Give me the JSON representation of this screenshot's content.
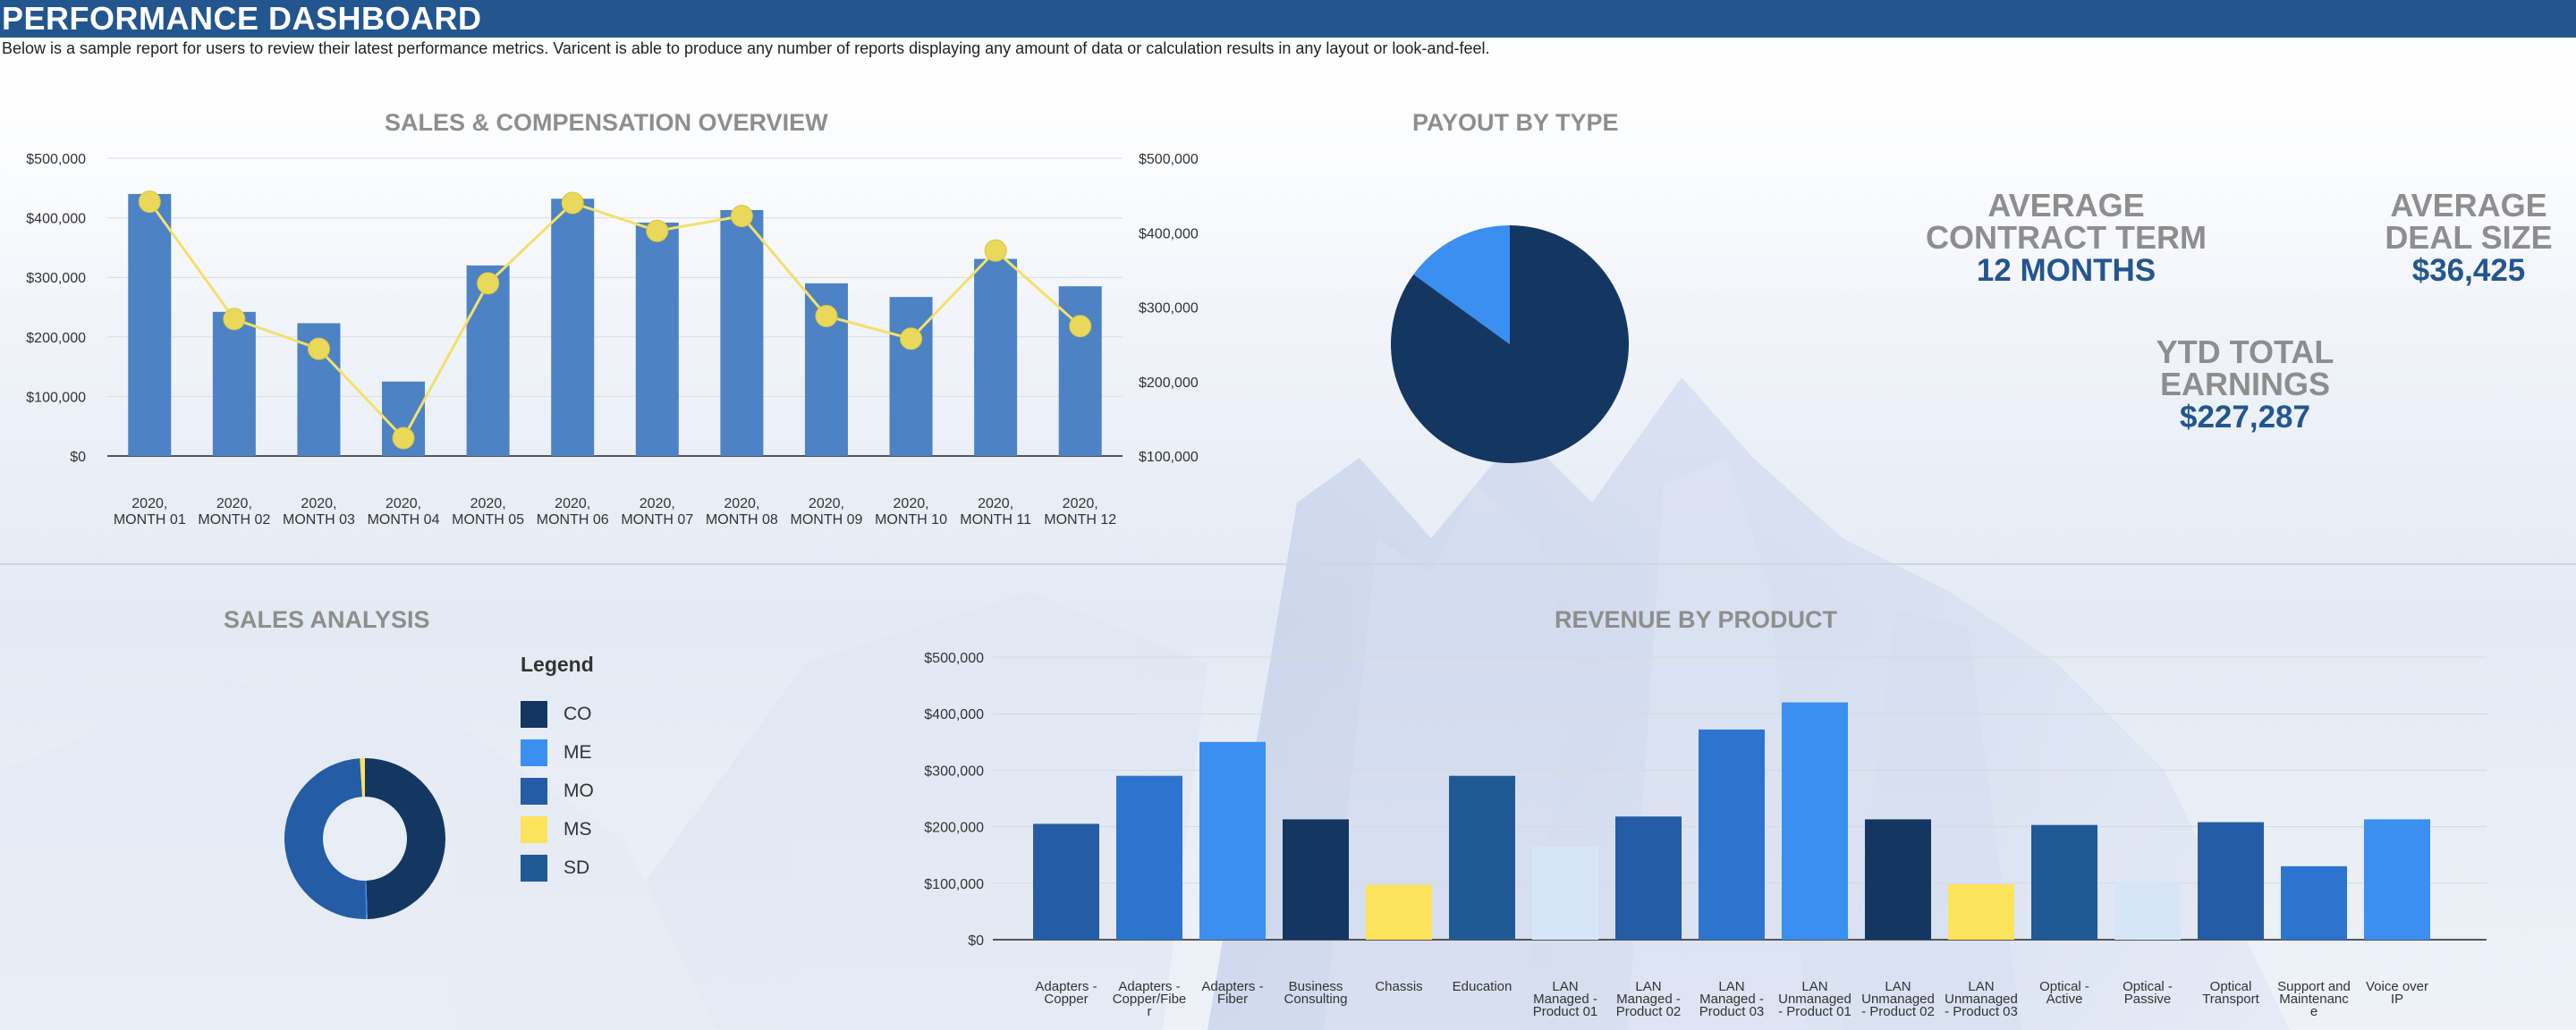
{
  "header": {
    "title": "PERFORMANCE DASHBOARD"
  },
  "subtitle": "Below is a sample report for users to review their latest performance metrics.  Varicent is able to produce any number of reports displaying any amount of data or calculation results in any layout or look-and-feel.",
  "sections": {
    "sales_comp": "SALES & COMPENSATION OVERVIEW",
    "payout": "PAYOUT BY TYPE",
    "sales_analysis": "SALES ANALYSIS",
    "revenue": "REVENUE BY PRODUCT"
  },
  "kpis": {
    "contract_term": {
      "label_line1": "AVERAGE",
      "label_line2": "CONTRACT TERM",
      "value": "12 MONTHS"
    },
    "deal_size": {
      "label_line1": "AVERAGE",
      "label_line2": "DEAL SIZE",
      "value": "$36,425"
    },
    "ytd": {
      "label_line1": "YTD TOTAL",
      "label_line2": "EARNINGS",
      "value": "$227,287"
    }
  },
  "legend": {
    "title": "Legend"
  },
  "colors": {
    "bar": "#4d82c4",
    "line": "#f4e06a",
    "navy": "#143761",
    "bright": "#3a8ff0",
    "mid": "#245ca5",
    "yellow": "#fce35c",
    "steel": "#1f5a94",
    "pale": "#d6e6f8",
    "blue2": "#2d74cf"
  },
  "chart_data": [
    {
      "type": "bar",
      "title": "SALES & COMPENSATION OVERVIEW",
      "categories": [
        "2020, MONTH 01",
        "2020, MONTH 02",
        "2020, MONTH 03",
        "2020, MONTH 04",
        "2020, MONTH 05",
        "2020, MONTH 06",
        "2020, MONTH 07",
        "2020, MONTH 08",
        "2020, MONTH 09",
        "2020, MONTH 10",
        "2020, MONTH 11",
        "2020, MONTH 12"
      ],
      "series": [
        {
          "type": "bar",
          "values": [
            440000,
            242000,
            223000,
            125000,
            320000,
            432000,
            392000,
            413000,
            290000,
            267000,
            331000,
            285000
          ]
        },
        {
          "type": "line",
          "values": [
            427000,
            230000,
            180000,
            30000,
            290000,
            425000,
            378000,
            403000,
            235000,
            197000,
            345000,
            218000
          ]
        }
      ],
      "yticks": [
        "$0",
        "$100,000",
        "$200,000",
        "$300,000",
        "$400,000",
        "$500,000"
      ],
      "ylim": [
        0,
        500000
      ],
      "y2ticks": [
        "$100,000",
        "$200,000",
        "$300,000",
        "$400,000",
        "$500,000"
      ],
      "y2lim": [
        100000,
        500000
      ]
    },
    {
      "type": "pie",
      "title": "PAYOUT BY TYPE",
      "slices": [
        {
          "value": 85,
          "color": "#143761"
        },
        {
          "value": 15,
          "color": "#3a8ff0"
        }
      ]
    },
    {
      "type": "pie",
      "title": "SALES ANALYSIS",
      "donut": true,
      "slices": [
        {
          "label": "CO",
          "value": 49.5,
          "color": "#143761"
        },
        {
          "label": "ME",
          "value": 0.3,
          "color": "#3a8ff0"
        },
        {
          "label": "MO",
          "value": 49.2,
          "color": "#245ca5"
        },
        {
          "label": "MS",
          "value": 1.0,
          "color": "#fce35c"
        },
        {
          "label": "SD",
          "value": 0.0,
          "color": "#1f5a94"
        }
      ]
    },
    {
      "type": "bar",
      "title": "REVENUE BY PRODUCT",
      "categories": [
        "Adapters - Copper",
        "Adapters - Copper/Fiber",
        "Adapters - Fiber",
        "Business Consulting",
        "Chassis",
        "Education",
        "LAN Managed - Product 01",
        "LAN Managed - Product 02",
        "LAN Managed - Product 03",
        "LAN Unmanaged - Product 01",
        "LAN Unmanaged - Product 02",
        "LAN Unmanaged - Product 03",
        "Optical - Active",
        "Optical - Passive",
        "Optical Transport",
        "Support and Maintenance",
        "Voice over IP"
      ],
      "tick_labels": [
        [
          "Adapters -",
          "Copper"
        ],
        [
          "Adapters -",
          "Copper/Fibe",
          "r"
        ],
        [
          "Adapters -",
          "Fiber"
        ],
        [
          "Business",
          "Consulting"
        ],
        [
          "Chassis"
        ],
        [
          "Education"
        ],
        [
          "LAN",
          "Managed -",
          "Product 01"
        ],
        [
          "LAN",
          "Managed -",
          "Product 02"
        ],
        [
          "LAN",
          "Managed -",
          "Product 03"
        ],
        [
          "LAN",
          "Unmanaged",
          "- Product 01"
        ],
        [
          "LAN",
          "Unmanaged",
          "- Product 02"
        ],
        [
          "LAN",
          "Unmanaged",
          "- Product 03"
        ],
        [
          "Optical -",
          "Active"
        ],
        [
          "Optical -",
          "Passive"
        ],
        [
          "Optical",
          "Transport"
        ],
        [
          "Support and",
          "Maintenanc",
          "e"
        ],
        [
          "Voice over",
          "IP"
        ]
      ],
      "values": [
        205000,
        290000,
        350000,
        213000,
        97000,
        290000,
        165000,
        218000,
        372000,
        420000,
        213000,
        98000,
        203000,
        103000,
        208000,
        130000,
        213000
      ],
      "bar_colors": [
        "#245ca5",
        "#2d74cf",
        "#3a8ff0",
        "#143761",
        "#fce35c",
        "#1f5a94",
        "#d6e6f8",
        "#245ca5",
        "#2d74cf",
        "#3a8ff0",
        "#143761",
        "#fce35c",
        "#1f5a94",
        "#d6e6f8",
        "#245ca5",
        "#2d74cf",
        "#3a8ff0"
      ],
      "yticks": [
        "$0",
        "$100,000",
        "$200,000",
        "$300,000",
        "$400,000",
        "$500,000"
      ],
      "ylim": [
        0,
        500000
      ]
    }
  ]
}
